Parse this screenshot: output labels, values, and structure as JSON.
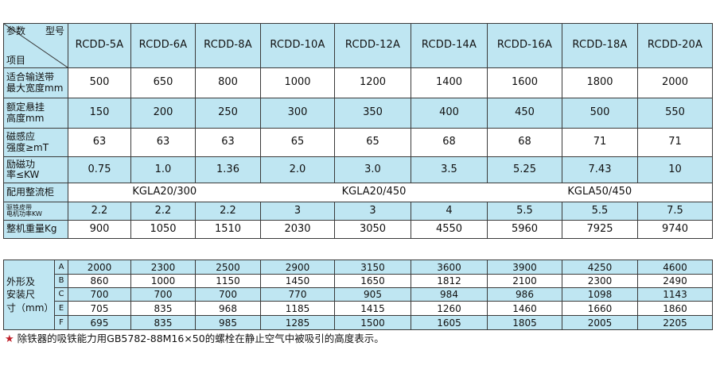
{
  "corner": {
    "param": "参数",
    "model": "型号",
    "item": "项目"
  },
  "models": [
    "RCDD-5A",
    "RCDD-6A",
    "RCDD-8A",
    "RCDD-10A",
    "RCDD-12A",
    "RCDD-14A",
    "RCDD-16A",
    "RCDD-18A",
    "RCDD-20A"
  ],
  "rows": [
    {
      "label_lines": [
        "适合输送带",
        "最大宽度mm"
      ],
      "values": [
        "500",
        "650",
        "800",
        "1000",
        "1200",
        "1400",
        "1600",
        "1800",
        "2000"
      ]
    },
    {
      "label_lines": [
        "额定悬挂",
        "高度mm"
      ],
      "values": [
        "150",
        "200",
        "250",
        "300",
        "350",
        "400",
        "450",
        "500",
        "550"
      ]
    },
    {
      "label_lines": [
        "磁感应",
        "强度≥mT"
      ],
      "values": [
        "63",
        "63",
        "63",
        "65",
        "65",
        "68",
        "68",
        "71",
        "71"
      ]
    },
    {
      "label_lines": [
        "励磁功",
        "率≤KW"
      ],
      "values": [
        "0.75",
        "1.0",
        "1.36",
        "2.0",
        "3.0",
        "3.5",
        "5.25",
        "7.43",
        "10"
      ]
    }
  ],
  "rectifier": {
    "label": "配用整流柜",
    "groups": [
      "KGLA20/300",
      "KGLA20/450",
      "KGLA50/450"
    ]
  },
  "belt_power": {
    "label_lines": [
      "驱铁皮带",
      "电机功率KW"
    ],
    "values": [
      "2.2",
      "2.2",
      "2.2",
      "3",
      "3",
      "4",
      "5.5",
      "5.5",
      "7.5"
    ]
  },
  "weight": {
    "label": "整机重量Kg",
    "values": [
      "900",
      "1050",
      "1510",
      "2030",
      "3050",
      "4550",
      "5960",
      "7925",
      "9740"
    ]
  },
  "dimensions": {
    "label_lines": [
      "外形及",
      "安装尺",
      "寸（mm）"
    ],
    "rows": [
      {
        "letter": "A",
        "values": [
          "2000",
          "2300",
          "2500",
          "2900",
          "3150",
          "3600",
          "3900",
          "4250",
          "4600"
        ]
      },
      {
        "letter": "B",
        "values": [
          "860",
          "1000",
          "1150",
          "1450",
          "1650",
          "1812",
          "2100",
          "2300",
          "2490"
        ]
      },
      {
        "letter": "C",
        "values": [
          "700",
          "700",
          "700",
          "770",
          "905",
          "984",
          "986",
          "1098",
          "1143"
        ]
      },
      {
        "letter": "E",
        "values": [
          "705",
          "835",
          "968",
          "1185",
          "1415",
          "1260",
          "1460",
          "1660",
          "1860"
        ]
      },
      {
        "letter": "F",
        "values": [
          "695",
          "835",
          "985",
          "1285",
          "1500",
          "1605",
          "1805",
          "2005",
          "2205"
        ]
      }
    ]
  },
  "footnote": {
    "star": "★",
    "text": "除铁器的吸铁能力用GB5782-88M16×50的螺栓在静止空气中被吸引的高度表示。"
  },
  "colors": {
    "header_fill": "#bfe6f2",
    "border": "#3a3a3a",
    "star": "#c0202a"
  }
}
